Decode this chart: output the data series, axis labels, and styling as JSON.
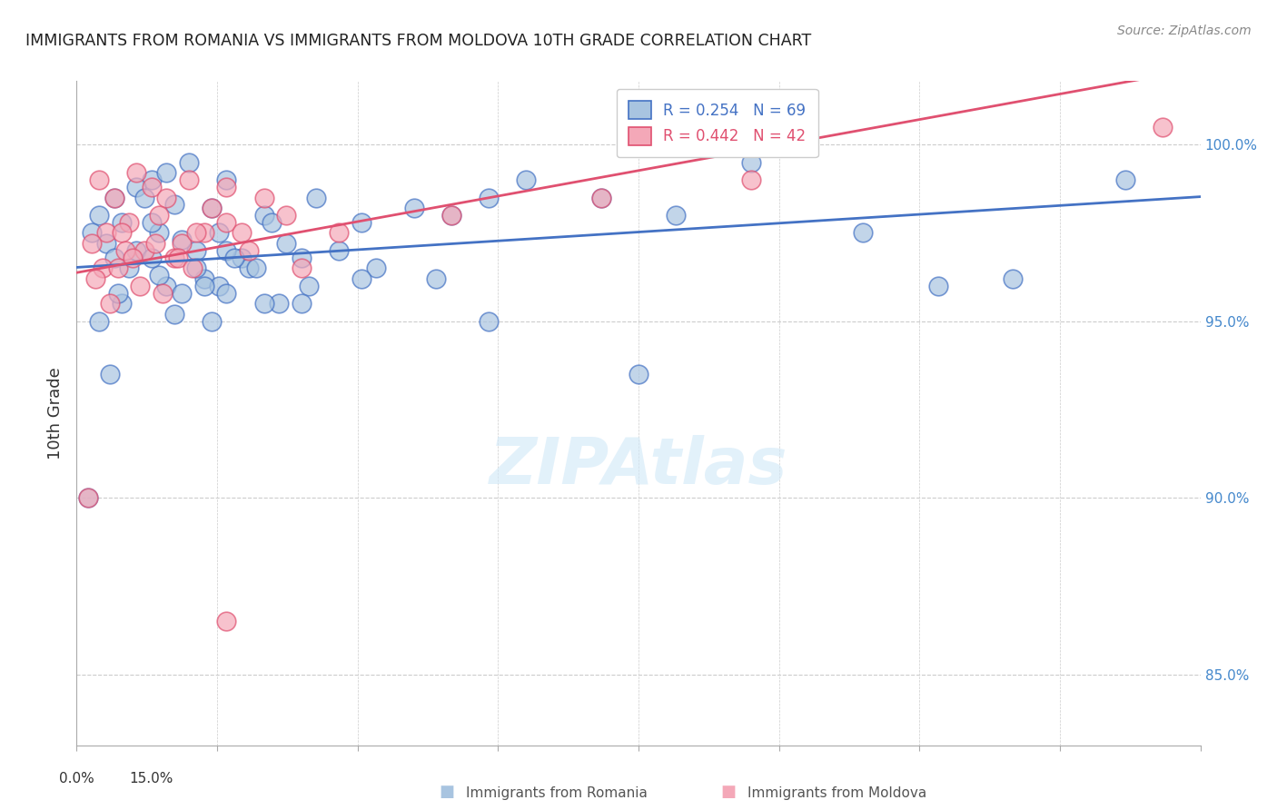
{
  "title": "IMMIGRANTS FROM ROMANIA VS IMMIGRANTS FROM MOLDOVA 10TH GRADE CORRELATION CHART",
  "source": "Source: ZipAtlas.com",
  "ylabel": "10th Grade",
  "yticks": [
    85.0,
    90.0,
    95.0,
    100.0
  ],
  "ytick_labels": [
    "85.0%",
    "90.0%",
    "95.0%",
    "100.0%"
  ],
  "xmin": 0.0,
  "xmax": 15.0,
  "ymin": 83.0,
  "ymax": 101.8,
  "romania_R": 0.254,
  "romania_N": 69,
  "moldova_R": 0.442,
  "moldova_N": 42,
  "romania_color": "#a8c4e0",
  "moldova_color": "#f4a8b8",
  "romania_line_color": "#4472c4",
  "moldova_line_color": "#e05070",
  "legend_label_romania": "Immigrants from Romania",
  "legend_label_moldova": "Immigrants from Moldova",
  "romania_scatter_x": [
    0.5,
    1.0,
    1.2,
    1.5,
    0.8,
    1.8,
    2.0,
    2.5,
    0.3,
    0.6,
    0.9,
    1.1,
    1.3,
    1.6,
    1.9,
    2.2,
    2.8,
    3.2,
    3.8,
    4.5,
    5.0,
    5.5,
    6.0,
    7.0,
    8.0,
    9.0,
    10.5,
    14.0,
    0.4,
    0.7,
    1.0,
    1.2,
    1.4,
    1.7,
    2.0,
    2.3,
    2.6,
    3.0,
    3.5,
    4.0,
    4.8,
    0.2,
    0.5,
    0.8,
    1.1,
    1.4,
    1.6,
    1.9,
    2.1,
    2.4,
    2.7,
    3.1,
    0.3,
    0.6,
    1.0,
    1.3,
    1.7,
    2.0,
    2.5,
    3.0,
    3.8,
    5.5,
    7.5,
    11.5,
    12.5,
    0.15,
    0.45,
    0.55,
    1.8
  ],
  "romania_scatter_y": [
    98.5,
    99.0,
    99.2,
    99.5,
    98.8,
    98.2,
    99.0,
    98.0,
    98.0,
    97.8,
    98.5,
    97.5,
    98.3,
    97.0,
    97.5,
    96.8,
    97.2,
    98.5,
    97.8,
    98.2,
    98.0,
    98.5,
    99.0,
    98.5,
    98.0,
    99.5,
    97.5,
    99.0,
    97.2,
    96.5,
    97.8,
    96.0,
    97.3,
    96.2,
    97.0,
    96.5,
    97.8,
    96.8,
    97.0,
    96.5,
    96.2,
    97.5,
    96.8,
    97.0,
    96.3,
    95.8,
    96.5,
    96.0,
    96.8,
    96.5,
    95.5,
    96.0,
    95.0,
    95.5,
    96.8,
    95.2,
    96.0,
    95.8,
    95.5,
    95.5,
    96.2,
    95.0,
    93.5,
    96.0,
    96.2,
    90.0,
    93.5,
    95.8,
    95.0
  ],
  "moldova_scatter_x": [
    0.3,
    0.5,
    0.8,
    1.0,
    1.2,
    1.5,
    1.8,
    2.0,
    2.5,
    0.4,
    0.7,
    1.1,
    1.4,
    1.7,
    2.0,
    2.3,
    0.2,
    0.6,
    0.9,
    1.3,
    1.6,
    2.8,
    3.5,
    5.0,
    7.0,
    9.0,
    14.5,
    0.35,
    0.65,
    1.05,
    1.35,
    0.25,
    0.55,
    0.85,
    1.15,
    1.55,
    2.2,
    3.0,
    0.45,
    0.15,
    2.0,
    0.75
  ],
  "moldova_scatter_y": [
    99.0,
    98.5,
    99.2,
    98.8,
    98.5,
    99.0,
    98.2,
    98.8,
    98.5,
    97.5,
    97.8,
    98.0,
    97.2,
    97.5,
    97.8,
    97.0,
    97.2,
    97.5,
    97.0,
    96.8,
    97.5,
    98.0,
    97.5,
    98.0,
    98.5,
    99.0,
    100.5,
    96.5,
    97.0,
    97.2,
    96.8,
    96.2,
    96.5,
    96.0,
    95.8,
    96.5,
    97.5,
    96.5,
    95.5,
    90.0,
    86.5,
    96.8
  ]
}
